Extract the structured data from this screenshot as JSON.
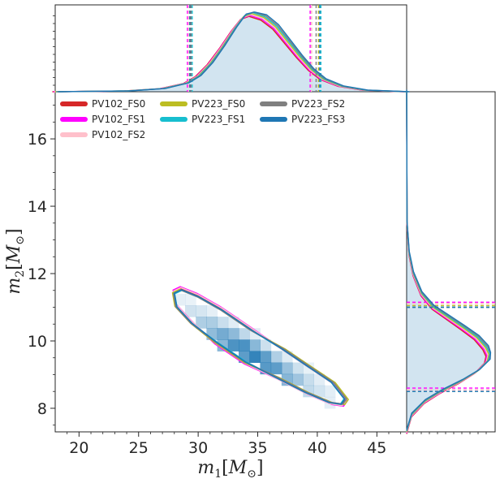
{
  "chart_data": {
    "type": "scatter",
    "subtype": "corner-plot-2d-density-with-marginals",
    "title": "",
    "xlabel": "m_1[M_⊙]",
    "ylabel": "m_2[M_⊙]",
    "xlabel_parts": {
      "symbol": "m",
      "sub": "1",
      "bracket_open": "[",
      "unit": "M",
      "unit_sub": "⊙",
      "bracket_close": "]"
    },
    "ylabel_parts": {
      "symbol": "m",
      "sub": "2",
      "bracket_open": "[",
      "unit": "M",
      "unit_sub": "⊙",
      "bracket_close": "]"
    },
    "xlim": [
      18,
      47.5
    ],
    "ylim": [
      7.3,
      17.4
    ],
    "x_ticks": [
      20,
      25,
      30,
      35,
      40,
      45
    ],
    "y_ticks": [
      8,
      10,
      12,
      14,
      16
    ],
    "x_tick_labels": [
      "20",
      "25",
      "30",
      "35",
      "40",
      "45"
    ],
    "y_tick_labels": [
      "8",
      "10",
      "12",
      "14",
      "16"
    ],
    "grid": false,
    "legend_position": "top-left",
    "legend_columns": 3,
    "series": [
      {
        "name": "PV102_FS0",
        "color": "#d62728",
        "m1_interval": [
          29.4,
          39.5
        ],
        "m2_interval": [
          8.55,
          11.1
        ]
      },
      {
        "name": "PV102_FS1",
        "color": "#ff00ff",
        "m1_interval": [
          29.1,
          39.4
        ],
        "m2_interval": [
          8.6,
          11.15
        ]
      },
      {
        "name": "PV102_FS2",
        "color": "#ffc0cb",
        "m1_interval": [
          29.2,
          39.5
        ],
        "m2_interval": [
          8.55,
          11.1
        ]
      },
      {
        "name": "PV223_FS0",
        "color": "#bcbd22",
        "m1_interval": [
          29.3,
          40.1
        ],
        "m2_interval": [
          8.5,
          11.05
        ]
      },
      {
        "name": "PV223_FS1",
        "color": "#17becf",
        "m1_interval": [
          29.5,
          40.3
        ],
        "m2_interval": [
          8.5,
          11.0
        ]
      },
      {
        "name": "PV223_FS2",
        "color": "#7f7f7f",
        "m1_interval": [
          29.4,
          39.9
        ],
        "m2_interval": [
          8.5,
          11.0
        ]
      },
      {
        "name": "PV223_FS3",
        "color": "#1f77b4",
        "m1_interval": [
          29.3,
          40.2
        ],
        "m2_interval": [
          8.5,
          11.0
        ]
      }
    ],
    "marginal_m1": {
      "x": [
        18,
        24,
        27,
        29,
        30,
        31,
        32,
        33,
        33.8,
        34.5,
        35.5,
        36.5,
        37.5,
        38.5,
        39.5,
        40.5,
        42,
        44,
        47.5
      ],
      "density": [
        0.0,
        0.01,
        0.04,
        0.11,
        0.2,
        0.36,
        0.57,
        0.8,
        0.96,
        1.0,
        0.95,
        0.83,
        0.64,
        0.45,
        0.28,
        0.16,
        0.07,
        0.02,
        0.0
      ]
    },
    "marginal_m2": {
      "y": [
        7.3,
        7.8,
        8.2,
        8.5,
        8.8,
        9.1,
        9.4,
        9.6,
        9.8,
        10.1,
        10.4,
        10.7,
        11.0,
        11.4,
        12.0,
        12.6,
        13.5,
        17.4
      ],
      "density": [
        0.0,
        0.06,
        0.22,
        0.42,
        0.66,
        0.86,
        0.98,
        1.0,
        0.96,
        0.85,
        0.68,
        0.5,
        0.32,
        0.18,
        0.08,
        0.03,
        0.005,
        0.0
      ]
    },
    "contour_90": {
      "m1": [
        28.0,
        28.6,
        30.0,
        32.0,
        34.5,
        37.0,
        39.3,
        41.2,
        42.3,
        42.0,
        41.0,
        39.0,
        36.5,
        34.0,
        31.5,
        29.5,
        28.2,
        28.0
      ],
      "m2": [
        11.45,
        11.55,
        11.35,
        10.95,
        10.35,
        9.75,
        9.2,
        8.75,
        8.25,
        8.1,
        8.15,
        8.45,
        8.9,
        9.35,
        9.95,
        10.55,
        11.05,
        11.45
      ]
    },
    "density_ridge": {
      "m1": [
        28.0,
        32.0,
        34.5,
        37.0,
        41.0
      ],
      "m2": [
        11.0,
        10.1,
        9.6,
        9.05,
        8.35
      ],
      "peak": {
        "m1": 34.5,
        "m2": 9.6
      }
    }
  }
}
